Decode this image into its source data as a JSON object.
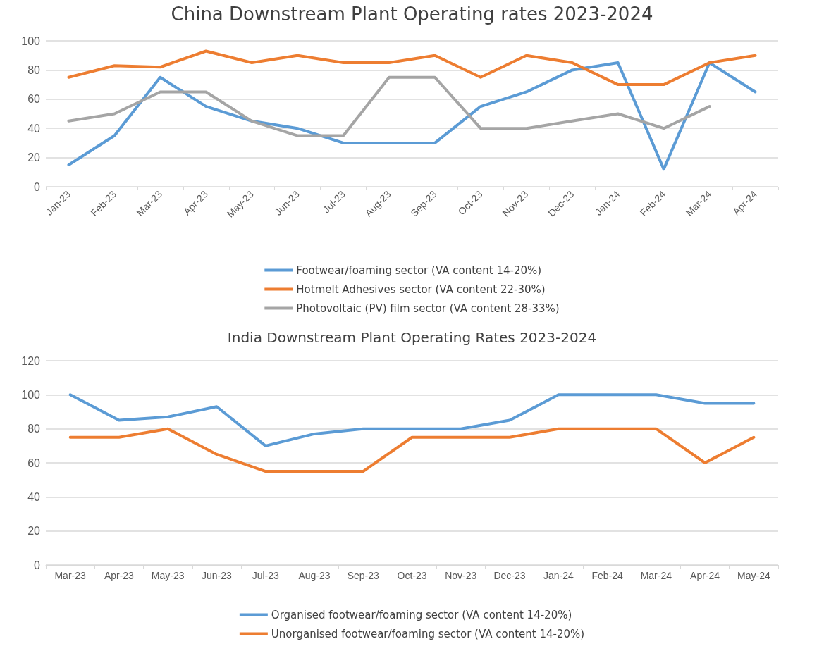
{
  "chart_data": [
    {
      "type": "line",
      "title": "China Downstream Plant Operating rates 2023-2024",
      "categories": [
        "Jan-23",
        "Feb-23",
        "Mar-23",
        "Apr-23",
        "May-23",
        "Jun-23",
        "Jul-23",
        "Aug-23",
        "Sep-23",
        "Oct-23",
        "Nov-23",
        "Dec-23",
        "Jan-24",
        "Feb-24",
        "Mar-24",
        "Apr-24"
      ],
      "series": [
        {
          "name": "Footwear/foaming sector (VA content 14-20%)",
          "color": "#5b9bd5",
          "values": [
            15,
            35,
            75,
            55,
            45,
            40,
            30,
            30,
            30,
            55,
            65,
            80,
            85,
            12,
            85,
            65
          ]
        },
        {
          "name": "Hotmelt Adhesives sector (VA content 22-30%)",
          "color": "#ed7d31",
          "values": [
            75,
            83,
            82,
            93,
            85,
            90,
            85,
            85,
            90,
            75,
            90,
            85,
            70,
            70,
            85,
            90
          ]
        },
        {
          "name": "Photovoltaic (PV) film sector (VA content 28-33%)",
          "color": "#a5a5a5",
          "values": [
            45,
            50,
            65,
            65,
            45,
            35,
            35,
            75,
            75,
            40,
            40,
            45,
            50,
            40,
            55,
            null
          ]
        }
      ],
      "ylim": [
        0,
        100
      ],
      "yticks": [
        0,
        20,
        40,
        60,
        80,
        100
      ],
      "grid": "y",
      "legend": "bottom",
      "marker": "none",
      "line_style": "solid"
    },
    {
      "type": "line",
      "title": "India Downstream Plant Operating Rates 2023-2024",
      "categories": [
        "Mar-23",
        "Apr-23",
        "May-23",
        "Jun-23",
        "Jul-23",
        "Aug-23",
        "Sep-23",
        "Oct-23",
        "Nov-23",
        "Dec-23",
        "Jan-24",
        "Feb-24",
        "Mar-24",
        "Apr-24",
        "May-24"
      ],
      "series": [
        {
          "name": "Organised footwear/foaming sector (VA content 14-20%)",
          "color": "#5b9bd5",
          "values": [
            100,
            85,
            87,
            93,
            70,
            77,
            80,
            80,
            80,
            85,
            100,
            100,
            100,
            95,
            95
          ]
        },
        {
          "name": "Unorganised footwear/foaming sector (VA content 14-20%)",
          "color": "#ed7d31",
          "values": [
            75,
            75,
            80,
            65,
            55,
            55,
            55,
            75,
            75,
            75,
            80,
            80,
            80,
            60,
            75
          ]
        }
      ],
      "ylim": [
        0,
        120
      ],
      "yticks": [
        0,
        20,
        40,
        60,
        80,
        100,
        120
      ],
      "grid": "y",
      "legend": "bottom",
      "marker": "none",
      "line_style": "solid"
    }
  ]
}
